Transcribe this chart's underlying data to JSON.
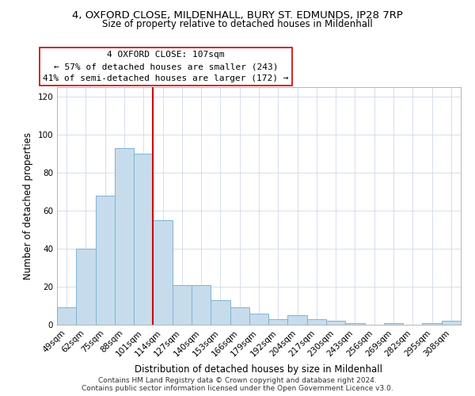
{
  "title1": "4, OXFORD CLOSE, MILDENHALL, BURY ST. EDMUNDS, IP28 7RP",
  "title2": "Size of property relative to detached houses in Mildenhall",
  "xlabel": "Distribution of detached houses by size in Mildenhall",
  "ylabel": "Number of detached properties",
  "categories": [
    "49sqm",
    "62sqm",
    "75sqm",
    "88sqm",
    "101sqm",
    "114sqm",
    "127sqm",
    "140sqm",
    "153sqm",
    "166sqm",
    "179sqm",
    "192sqm",
    "204sqm",
    "217sqm",
    "230sqm",
    "243sqm",
    "256sqm",
    "269sqm",
    "282sqm",
    "295sqm",
    "308sqm"
  ],
  "values": [
    9,
    40,
    68,
    93,
    90,
    55,
    21,
    21,
    13,
    9,
    6,
    3,
    5,
    3,
    2,
    1,
    0,
    1,
    0,
    1,
    2
  ],
  "bar_color": "#c6dcec",
  "bar_edge_color": "#7fb3d3",
  "vline_x_index": 4.5,
  "vline_color": "#cc0000",
  "annotation_title": "4 OXFORD CLOSE: 107sqm",
  "annotation_line1": "← 57% of detached houses are smaller (243)",
  "annotation_line2": "41% of semi-detached houses are larger (172) →",
  "annotation_box_color": "#ffffff",
  "annotation_box_edge": "#cc0000",
  "ylim": [
    0,
    125
  ],
  "yticks": [
    0,
    20,
    40,
    60,
    80,
    100,
    120
  ],
  "footer1": "Contains HM Land Registry data © Crown copyright and database right 2024.",
  "footer2": "Contains public sector information licensed under the Open Government Licence v3.0.",
  "title_fontsize": 9.5,
  "subtitle_fontsize": 8.5,
  "axis_label_fontsize": 8.5,
  "tick_fontsize": 7.5,
  "annotation_fontsize": 8,
  "footer_fontsize": 6.5
}
